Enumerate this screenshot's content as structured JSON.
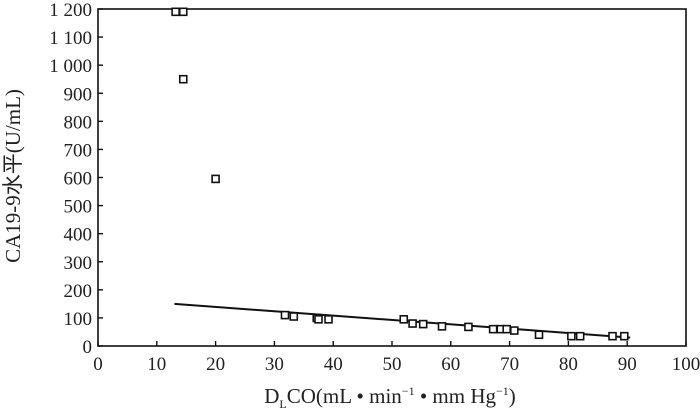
{
  "chart_data": {
    "type": "scatter",
    "xlabel_parts": [
      "D",
      "L",
      "CO(mL • min",
      "−1",
      " • mm Hg",
      "−1",
      ")"
    ],
    "ylabel": "CA19-9水平(U/mL)",
    "xlim": [
      0,
      100
    ],
    "ylim": [
      0,
      1200
    ],
    "x_ticks": [
      0,
      10,
      20,
      30,
      40,
      50,
      60,
      70,
      80,
      90,
      100
    ],
    "y_ticks": [
      0,
      100,
      200,
      300,
      400,
      500,
      600,
      700,
      800,
      900,
      1000,
      1100,
      1200
    ],
    "y_tick_labels": [
      "0",
      "100",
      "200",
      "300",
      "400",
      "500",
      "600",
      "700",
      "800",
      "900",
      "1 000",
      "1 100",
      "1 200"
    ],
    "grid": false,
    "points": [
      {
        "x": 13.2,
        "y": 1190
      },
      {
        "x": 14.5,
        "y": 1190
      },
      {
        "x": 14.5,
        "y": 950
      },
      {
        "x": 20,
        "y": 595
      },
      {
        "x": 31.8,
        "y": 110
      },
      {
        "x": 33.3,
        "y": 105
      },
      {
        "x": 37.2,
        "y": 100
      },
      {
        "x": 37.5,
        "y": 95
      },
      {
        "x": 39.2,
        "y": 95
      },
      {
        "x": 52,
        "y": 95
      },
      {
        "x": 53.5,
        "y": 80
      },
      {
        "x": 55.3,
        "y": 78
      },
      {
        "x": 58.5,
        "y": 70
      },
      {
        "x": 63,
        "y": 68
      },
      {
        "x": 67.2,
        "y": 60
      },
      {
        "x": 68.5,
        "y": 60
      },
      {
        "x": 69.5,
        "y": 60
      },
      {
        "x": 70.8,
        "y": 55
      },
      {
        "x": 75,
        "y": 40
      },
      {
        "x": 80.5,
        "y": 35
      },
      {
        "x": 82,
        "y": 35
      },
      {
        "x": 87.5,
        "y": 35
      },
      {
        "x": 89.5,
        "y": 35
      }
    ],
    "trend_line": {
      "x": [
        13,
        90.5
      ],
      "y": [
        150,
        30
      ]
    },
    "marker": "open-square",
    "color": "#111111"
  }
}
